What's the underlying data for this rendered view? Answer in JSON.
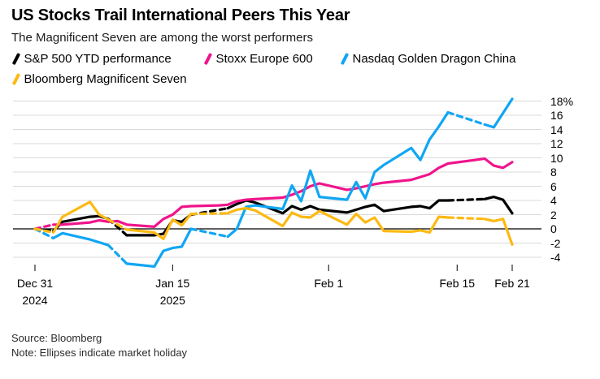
{
  "header": {
    "title": "US Stocks Trail International Peers This Year",
    "subtitle": "The Magnificent Seven are among the worst performers"
  },
  "legend": [
    {
      "label": "S&P 500 YTD performance",
      "color": "#000000"
    },
    {
      "label": "Stoxx Europe 600",
      "color": "#f0148c"
    },
    {
      "label": "Nasdaq Golden Dragon China",
      "color": "#10a6f4"
    },
    {
      "label": "Bloomberg Magnificent Seven",
      "color": "#fdb913"
    }
  ],
  "footer": {
    "source": "Source: Bloomberg",
    "note": "Note: Ellipses indicate market holiday"
  },
  "chart_data": {
    "type": "line",
    "title": "US Stocks Trail International Peers This Year",
    "subtitle": "The Magnificent Seven are among the worst performers",
    "unit": "% YTD change",
    "grid": "horizontal-on",
    "legend_position": "top",
    "dash_meaning": "dashed segments indicate market holiday",
    "x_axis": {
      "start_date": "Dec 31 2024",
      "end_date": "Feb 21 2025",
      "days_from_start_total": 52,
      "ticks": [
        {
          "day": 0,
          "label": "Dec 31",
          "sublabel": "2024"
        },
        {
          "day": 15,
          "label": "Jan 15",
          "sublabel": "2025"
        },
        {
          "day": 32,
          "label": "Feb 1",
          "sublabel": ""
        },
        {
          "day": 46,
          "label": "Feb 15",
          "sublabel": ""
        },
        {
          "day": 52,
          "label": "Feb 21",
          "sublabel": ""
        }
      ]
    },
    "y_axis": {
      "min": -4,
      "max": 18,
      "step": 2,
      "labels": [
        "18%",
        "16",
        "14",
        "12",
        "10",
        "8",
        "6",
        "4",
        "2",
        "0",
        "-2",
        "-4"
      ],
      "values": [
        18,
        16,
        14,
        12,
        10,
        8,
        6,
        4,
        2,
        0,
        -2,
        -4
      ],
      "zero_line": true
    },
    "series": [
      {
        "name": "S&P 500 YTD performance",
        "color": "#000000",
        "points": [
          [
            0,
            0
          ],
          [
            2,
            -0.3
          ],
          [
            3,
            1.0
          ],
          [
            6,
            1.7
          ],
          [
            7,
            1.8
          ],
          [
            8,
            1.4
          ],
          [
            10,
            -0.9
          ],
          [
            13,
            -0.9
          ],
          [
            14,
            -0.7
          ],
          [
            15,
            1.2
          ],
          [
            16,
            1.0
          ],
          [
            17,
            2.0
          ],
          [
            21,
            2.9
          ],
          [
            22,
            3.5
          ],
          [
            23,
            4.0
          ],
          [
            24,
            3.7
          ],
          [
            27,
            2.2
          ],
          [
            28,
            3.2
          ],
          [
            29,
            2.7
          ],
          [
            30,
            3.2
          ],
          [
            31,
            2.7
          ],
          [
            34,
            2.3
          ],
          [
            35,
            2.7
          ],
          [
            36,
            3.1
          ],
          [
            37,
            3.4
          ],
          [
            38,
            2.5
          ],
          [
            41,
            3.1
          ],
          [
            42,
            3.2
          ],
          [
            43,
            2.9
          ],
          [
            44,
            4.0
          ],
          [
            45,
            4.0
          ],
          [
            49,
            4.2
          ],
          [
            50,
            4.5
          ],
          [
            51,
            4.1
          ],
          [
            52,
            2.2
          ]
        ],
        "dashed_segments": [
          [
            0,
            2
          ],
          [
            8,
            10
          ],
          [
            17,
            21
          ],
          [
            45,
            49
          ]
        ]
      },
      {
        "name": "Stoxx Europe 600",
        "color": "#f0148c",
        "points": [
          [
            0,
            0
          ],
          [
            2,
            0.6
          ],
          [
            3,
            0.6
          ],
          [
            6,
            0.9
          ],
          [
            7,
            1.2
          ],
          [
            8,
            1.0
          ],
          [
            9,
            1.1
          ],
          [
            10,
            0.6
          ],
          [
            13,
            0.3
          ],
          [
            14,
            1.4
          ],
          [
            15,
            2.0
          ],
          [
            16,
            3.1
          ],
          [
            17,
            3.2
          ],
          [
            20,
            3.3
          ],
          [
            21,
            3.4
          ],
          [
            22,
            3.9
          ],
          [
            23,
            4.1
          ],
          [
            24,
            4.2
          ],
          [
            27,
            4.4
          ],
          [
            28,
            4.8
          ],
          [
            29,
            5.3
          ],
          [
            30,
            6.0
          ],
          [
            31,
            6.4
          ],
          [
            34,
            5.5
          ],
          [
            35,
            5.7
          ],
          [
            36,
            6.0
          ],
          [
            37,
            6.3
          ],
          [
            38,
            6.5
          ],
          [
            41,
            6.9
          ],
          [
            42,
            7.3
          ],
          [
            43,
            7.7
          ],
          [
            44,
            8.6
          ],
          [
            45,
            9.2
          ],
          [
            48,
            9.7
          ],
          [
            49,
            9.9
          ],
          [
            50,
            8.9
          ],
          [
            51,
            8.6
          ],
          [
            52,
            9.4
          ]
        ],
        "dashed_segments": [
          [
            0,
            2
          ]
        ]
      },
      {
        "name": "Nasdaq Golden Dragon China",
        "color": "#10a6f4",
        "points": [
          [
            0,
            0
          ],
          [
            2,
            -1.3
          ],
          [
            3,
            -0.6
          ],
          [
            6,
            -1.5
          ],
          [
            7,
            -1.9
          ],
          [
            8,
            -2.3
          ],
          [
            10,
            -4.9
          ],
          [
            13,
            -5.3
          ],
          [
            14,
            -3.1
          ],
          [
            15,
            -2.7
          ],
          [
            16,
            -2.5
          ],
          [
            17,
            0.0
          ],
          [
            21,
            -1.1
          ],
          [
            22,
            0.0
          ],
          [
            23,
            3.1
          ],
          [
            24,
            3.3
          ],
          [
            27,
            2.8
          ],
          [
            28,
            6.1
          ],
          [
            29,
            3.9
          ],
          [
            30,
            8.2
          ],
          [
            31,
            4.5
          ],
          [
            34,
            4.1
          ],
          [
            35,
            6.6
          ],
          [
            36,
            4.3
          ],
          [
            37,
            8.0
          ],
          [
            38,
            9.0
          ],
          [
            41,
            11.4
          ],
          [
            42,
            9.7
          ],
          [
            43,
            12.6
          ],
          [
            44,
            14.4
          ],
          [
            45,
            16.4
          ],
          [
            49,
            14.7
          ],
          [
            50,
            14.3
          ],
          [
            51,
            16.3
          ],
          [
            52,
            18.3
          ]
        ],
        "dashed_segments": [
          [
            0,
            2
          ],
          [
            8,
            10
          ],
          [
            17,
            21
          ],
          [
            45,
            49
          ]
        ]
      },
      {
        "name": "Bloomberg Magnificent Seven",
        "color": "#fdb913",
        "points": [
          [
            0,
            0
          ],
          [
            2,
            -0.5
          ],
          [
            3,
            1.7
          ],
          [
            6,
            3.8
          ],
          [
            7,
            2.0
          ],
          [
            8,
            1.3
          ],
          [
            10,
            -0.1
          ],
          [
            13,
            -0.5
          ],
          [
            14,
            -1.4
          ],
          [
            15,
            1.3
          ],
          [
            16,
            0.5
          ],
          [
            17,
            2.1
          ],
          [
            21,
            2.2
          ],
          [
            22,
            2.7
          ],
          [
            23,
            2.9
          ],
          [
            24,
            2.6
          ],
          [
            27,
            0.4
          ],
          [
            28,
            2.3
          ],
          [
            29,
            1.7
          ],
          [
            30,
            1.6
          ],
          [
            31,
            2.5
          ],
          [
            34,
            0.6
          ],
          [
            35,
            2.1
          ],
          [
            36,
            0.9
          ],
          [
            37,
            1.6
          ],
          [
            38,
            -0.3
          ],
          [
            41,
            -0.4
          ],
          [
            42,
            -0.2
          ],
          [
            43,
            -0.5
          ],
          [
            44,
            1.7
          ],
          [
            45,
            1.6
          ],
          [
            49,
            1.4
          ],
          [
            50,
            1.1
          ],
          [
            51,
            1.4
          ],
          [
            52,
            -2.2
          ]
        ],
        "dashed_segments": [
          [
            0,
            2
          ],
          [
            8,
            10
          ],
          [
            17,
            21
          ],
          [
            45,
            49
          ]
        ]
      }
    ]
  }
}
